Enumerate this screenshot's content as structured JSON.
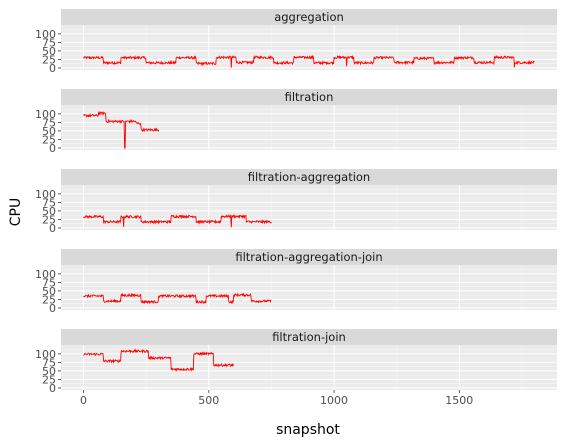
{
  "chart_data": {
    "type": "line",
    "xlabel": "snapshot",
    "ylabel": "CPU",
    "xlim": [
      -90,
      1890
    ],
    "ylim": [
      -6,
      126
    ],
    "xticks": [
      0,
      500,
      1000,
      1500
    ],
    "xtick_labels": [
      "0",
      "500",
      "1000",
      "1500"
    ],
    "yticks": [
      0,
      25,
      50,
      75,
      100
    ],
    "ytick_labels": [
      "0",
      "25",
      "50",
      "75",
      "100"
    ],
    "grid": true,
    "line_color": "#ff0000",
    "panels": [
      {
        "name": "aggregation",
        "x_max": 1800,
        "segments": [
          [
            0,
            80,
            30
          ],
          [
            80,
            150,
            15
          ],
          [
            150,
            250,
            30
          ],
          [
            250,
            370,
            15
          ],
          [
            370,
            450,
            30
          ],
          [
            450,
            530,
            13
          ],
          [
            530,
            610,
            31
          ],
          [
            610,
            680,
            16
          ],
          [
            680,
            760,
            31
          ],
          [
            760,
            840,
            15
          ],
          [
            840,
            920,
            31
          ],
          [
            920,
            1000,
            15
          ],
          [
            1000,
            1080,
            31
          ],
          [
            1080,
            1160,
            15
          ],
          [
            1160,
            1240,
            30
          ],
          [
            1240,
            1320,
            16
          ],
          [
            1320,
            1400,
            28
          ],
          [
            1400,
            1480,
            16
          ],
          [
            1480,
            1560,
            30
          ],
          [
            1560,
            1640,
            16
          ],
          [
            1640,
            1720,
            31
          ],
          [
            1720,
            1800,
            16
          ]
        ],
        "spikes": [
          [
            590,
            1
          ],
          [
            1050,
            5
          ],
          [
            1720,
            2
          ]
        ]
      },
      {
        "name": "filtration",
        "x_max": 300,
        "segments": [
          [
            0,
            60,
            95
          ],
          [
            60,
            90,
            102
          ],
          [
            90,
            210,
            78
          ],
          [
            210,
            230,
            72
          ],
          [
            230,
            300,
            53
          ]
        ],
        "spikes": [
          [
            165,
            0
          ]
        ]
      },
      {
        "name": "filtration-aggregation",
        "x_max": 750,
        "segments": [
          [
            0,
            80,
            33
          ],
          [
            80,
            150,
            18
          ],
          [
            150,
            230,
            33
          ],
          [
            230,
            350,
            18
          ],
          [
            350,
            450,
            34
          ],
          [
            450,
            550,
            18
          ],
          [
            550,
            650,
            34
          ],
          [
            650,
            750,
            18
          ]
        ],
        "spikes": [
          [
            160,
            3
          ],
          [
            590,
            2
          ]
        ]
      },
      {
        "name": "filtration-aggregation-join",
        "x_max": 750,
        "segments": [
          [
            0,
            80,
            35
          ],
          [
            80,
            150,
            20
          ],
          [
            150,
            230,
            37
          ],
          [
            230,
            300,
            18
          ],
          [
            300,
            450,
            35
          ],
          [
            450,
            490,
            18
          ],
          [
            490,
            580,
            35
          ],
          [
            580,
            600,
            18
          ],
          [
            600,
            670,
            38
          ],
          [
            670,
            750,
            20
          ]
        ],
        "spikes": []
      },
      {
        "name": "filtration-join",
        "x_max": 600,
        "segments": [
          [
            0,
            80,
            99
          ],
          [
            80,
            150,
            79
          ],
          [
            150,
            260,
            108
          ],
          [
            260,
            350,
            88
          ],
          [
            350,
            440,
            55
          ],
          [
            440,
            520,
            100
          ],
          [
            520,
            600,
            67
          ]
        ],
        "spikes": []
      }
    ]
  }
}
